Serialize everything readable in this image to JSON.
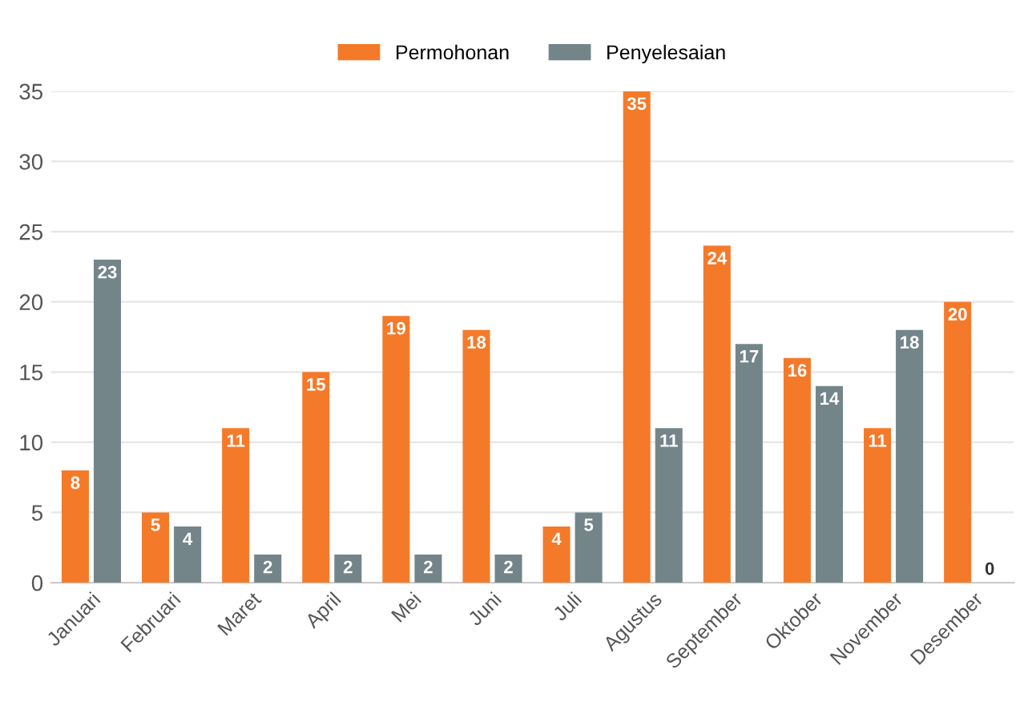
{
  "chart_data": {
    "type": "bar",
    "categories": [
      "Januari",
      "Februari",
      "Maret",
      "April",
      "Mei",
      "Juni",
      "Juli",
      "Agustus",
      "September",
      "Oktober",
      "November",
      "Desember"
    ],
    "series": [
      {
        "name": "Permohonan",
        "color": "#f47a2a",
        "values": [
          8,
          5,
          11,
          15,
          19,
          18,
          4,
          35,
          24,
          16,
          11,
          20
        ]
      },
      {
        "name": "Penyelesaian",
        "color": "#74858a",
        "values": [
          23,
          4,
          2,
          2,
          2,
          2,
          5,
          11,
          17,
          14,
          18,
          0
        ]
      }
    ],
    "ylim": [
      0,
      35
    ],
    "yticks": [
      0,
      5,
      10,
      15,
      20,
      25,
      30,
      35
    ],
    "grid": "y",
    "legend": "top",
    "data_labels": true
  }
}
